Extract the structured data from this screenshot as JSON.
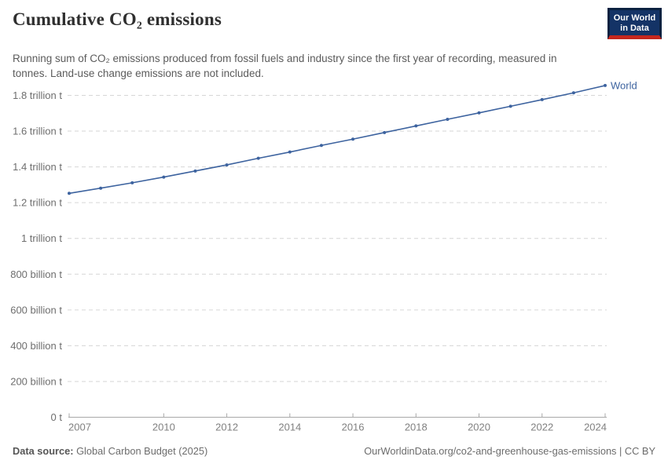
{
  "header": {
    "title": "Cumulative CO₂ emissions",
    "subtitle": "Running sum of CO₂ emissions produced from fossil fuels and industry since the first year of recording, measured in tonnes. Land-use change emissions are not included.",
    "logo": {
      "line1": "Our World",
      "line2": "in Data",
      "bg_color": "#143366",
      "accent_color": "#c5271e"
    }
  },
  "chart_data": {
    "type": "line",
    "title": "Cumulative CO₂ emissions",
    "unit": "trillion tonnes of CO₂",
    "x": [
      2007,
      2008,
      2009,
      2010,
      2011,
      2012,
      2013,
      2014,
      2015,
      2016,
      2017,
      2018,
      2019,
      2020,
      2021,
      2022,
      2023,
      2024
    ],
    "series": [
      {
        "name": "World",
        "color": "#3d639f",
        "values": [
          1.252,
          1.281,
          1.311,
          1.343,
          1.377,
          1.411,
          1.448,
          1.483,
          1.52,
          1.555,
          1.592,
          1.629,
          1.666,
          1.702,
          1.739,
          1.776,
          1.814,
          1.855
        ]
      }
    ],
    "x_ticks": [
      2007,
      2010,
      2012,
      2014,
      2016,
      2018,
      2020,
      2022,
      2024
    ],
    "y_ticks": [
      {
        "value": 0.0,
        "label": "0 t"
      },
      {
        "value": 0.2,
        "label": "200 billion t"
      },
      {
        "value": 0.4,
        "label": "400 billion t"
      },
      {
        "value": 0.6,
        "label": "600 billion t"
      },
      {
        "value": 0.8,
        "label": "800 billion t"
      },
      {
        "value": 1.0,
        "label": "1 trillion t"
      },
      {
        "value": 1.2,
        "label": "1.2 trillion t"
      },
      {
        "value": 1.4,
        "label": "1.4 trillion t"
      },
      {
        "value": 1.6,
        "label": "1.6 trillion t"
      },
      {
        "value": 1.8,
        "label": "1.8 trillion t"
      }
    ],
    "xlim": [
      2007,
      2024
    ],
    "ylim": [
      0,
      1.87
    ],
    "grid": "horizontal-dashed",
    "legend_position": "line-end-label",
    "colors": {
      "grid": "#d6d6d6",
      "axis": "#a8a8a8",
      "x_tick_label": "#818181",
      "y_tick_label": "#6e6e6e"
    }
  },
  "footer": {
    "source_label": "Data source:",
    "source_value": " Global Carbon Budget (2025)",
    "link": "OurWorldinData.org/co2-and-greenhouse-gas-emissions | CC BY"
  }
}
